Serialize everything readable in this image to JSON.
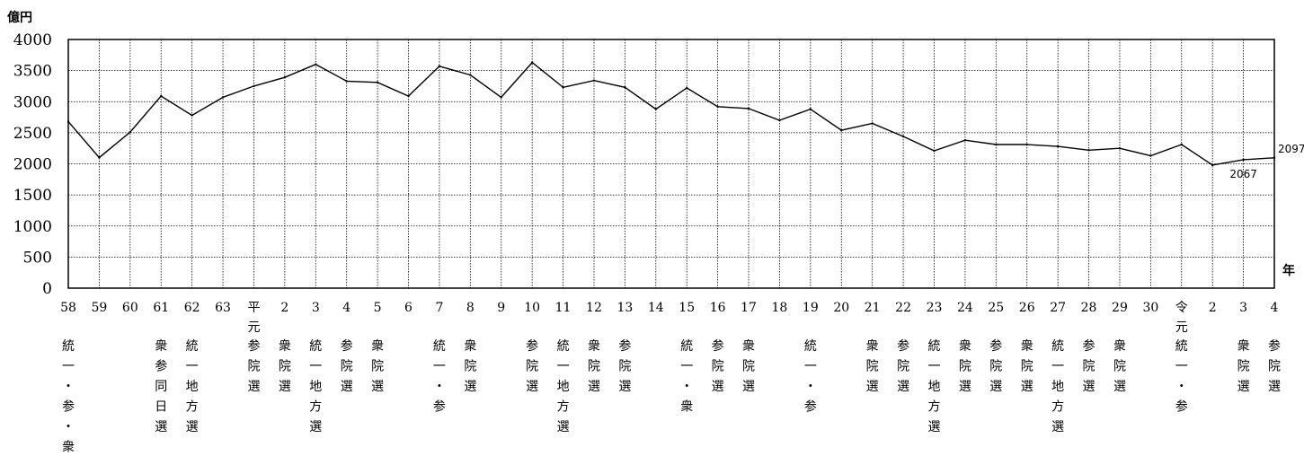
{
  "chart_data": {
    "type": "line",
    "ylabel": "億円",
    "xlabel": "年",
    "ylim": [
      0,
      4000
    ],
    "yticks": [
      "0",
      "500",
      "1000",
      "1500",
      "2000",
      "2500",
      "3000",
      "3500",
      "4000"
    ],
    "grid": true,
    "categories": [
      "58",
      "59",
      "60",
      "61",
      "62",
      "63",
      "平元",
      "2",
      "3",
      "4",
      "5",
      "6",
      "7",
      "8",
      "9",
      "10",
      "11",
      "12",
      "13",
      "14",
      "15",
      "16",
      "17",
      "18",
      "19",
      "20",
      "21",
      "22",
      "23",
      "24",
      "25",
      "26",
      "27",
      "28",
      "29",
      "30",
      "令元",
      "2",
      "3",
      "4"
    ],
    "notes": [
      "統一・参・衆",
      "",
      "",
      "衆参同日選",
      "統一地方選",
      "",
      "参院選",
      "衆院選",
      "統一地方選",
      "参院選",
      "衆院選",
      "",
      "統一・参",
      "衆院選",
      "",
      "参院選",
      "統一地方選",
      "衆院選",
      "参院選",
      "",
      "統一・衆",
      "参院選",
      "衆院選",
      "",
      "統一・参",
      "",
      "衆院選",
      "参院選",
      "統一地方選",
      "衆院選",
      "参院選",
      "衆院選",
      "統一地方選",
      "参院選",
      "衆院選",
      "",
      "統一・参",
      "",
      "衆院選",
      "参院選"
    ],
    "series": [
      {
        "values": [
          2680,
          2100,
          2510,
          3090,
          2780,
          3070,
          3250,
          3390,
          3600,
          3330,
          3310,
          3090,
          3570,
          3430,
          3070,
          3630,
          3230,
          3340,
          3230,
          2880,
          3220,
          2920,
          2890,
          2700,
          2880,
          2540,
          2650,
          2440,
          2210,
          2380,
          2310,
          2310,
          2280,
          2220,
          2250,
          2130,
          2310,
          1980,
          2067,
          2097
        ],
        "labels": [
          {
            "index": 38,
            "text": "2067"
          },
          {
            "index": 39,
            "text": "2097"
          }
        ]
      }
    ]
  }
}
